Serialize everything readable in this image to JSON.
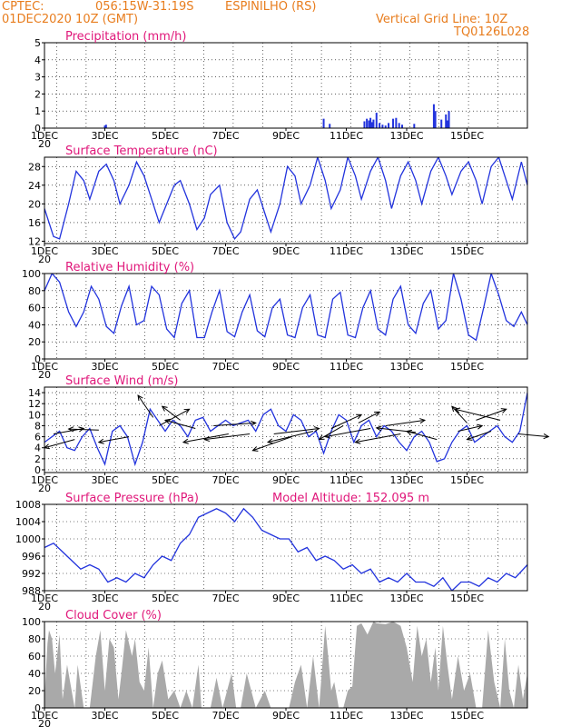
{
  "header": {
    "source": "CPTEC:",
    "coords": "056:15W-31:19S",
    "station": "ESPINILHO (RS)",
    "date": "01DEC2020 10Z (GMT)",
    "grid_note": "Vertical Grid Line: 10Z",
    "code": "TQ0126L028"
  },
  "x_labels": [
    "1DEC",
    "3DEC",
    "5DEC",
    "7DEC",
    "9DEC",
    "11DEC",
    "13DEC",
    "15DEC"
  ],
  "x_year_fragment": "20",
  "colors": {
    "line": "#2233dd",
    "cloud": "#a9a9a9",
    "title": "#e0177a",
    "header": "#e87d1e"
  },
  "chart_data": [
    {
      "type": "bar",
      "title": "Precipitation (mm/h)",
      "ylim": [
        0,
        5
      ],
      "yticks": [
        0,
        1,
        2,
        3,
        4,
        5
      ],
      "x_unit": "days since 1DEC 00Z",
      "x": [
        2.0,
        2.04,
        9.25,
        9.45,
        10.6,
        10.68,
        10.75,
        10.8,
        10.85,
        10.9,
        11.0,
        11.1,
        11.2,
        11.3,
        11.4,
        11.55,
        11.65,
        11.75,
        11.85,
        12.25,
        12.9,
        12.95,
        13.15,
        13.3,
        13.35,
        13.4
      ],
      "values": [
        0.15,
        0.2,
        0.55,
        0.25,
        0.4,
        0.55,
        0.45,
        0.6,
        0.35,
        0.5,
        0.9,
        0.3,
        0.2,
        0.15,
        0.3,
        0.55,
        0.6,
        0.3,
        0.2,
        0.25,
        1.4,
        1.0,
        0.5,
        0.8,
        0.45,
        1.0
      ]
    },
    {
      "type": "line",
      "title": "Surface Temperature (nC)",
      "ylim": [
        11.5,
        30
      ],
      "yticks": [
        12,
        16,
        20,
        24,
        28
      ],
      "x_unit": "days since 1DEC 00Z",
      "x": [
        0.0,
        0.3,
        0.5,
        0.8,
        1.05,
        1.3,
        1.5,
        1.8,
        2.05,
        2.3,
        2.5,
        2.8,
        3.05,
        3.3,
        3.5,
        3.8,
        4.05,
        4.3,
        4.5,
        4.8,
        5.05,
        5.3,
        5.5,
        5.8,
        6.05,
        6.3,
        6.5,
        6.8,
        7.05,
        7.3,
        7.5,
        7.8,
        8.05,
        8.3,
        8.5,
        8.8,
        9.05,
        9.3,
        9.5,
        9.8,
        10.05,
        10.3,
        10.5,
        10.8,
        11.05,
        11.3,
        11.5,
        11.8,
        12.05,
        12.3,
        12.5,
        12.8,
        13.05,
        13.3,
        13.5,
        13.8,
        14.05,
        14.3,
        14.5,
        14.8,
        15.05,
        15.3,
        15.5,
        15.8,
        16.0
      ],
      "values": [
        19,
        13,
        12.5,
        20,
        27,
        25,
        21,
        27,
        28.5,
        25,
        20,
        24,
        29,
        26,
        22,
        16,
        20,
        24,
        25,
        20,
        14.5,
        17,
        22,
        24,
        16,
        12.5,
        14,
        21,
        23,
        18,
        14,
        20,
        28,
        26,
        20,
        24,
        30,
        25,
        19,
        23,
        30,
        26,
        21,
        27,
        30,
        25,
        19,
        26,
        29,
        25,
        20,
        27,
        30,
        26,
        22,
        27,
        29,
        25,
        20,
        28,
        30,
        25,
        21,
        29,
        24
      ]
    },
    {
      "type": "line",
      "title": "Relative Humidity (%)",
      "ylim": [
        0,
        100
      ],
      "yticks": [
        0,
        20,
        40,
        60,
        80,
        100
      ],
      "x_unit": "days since 1DEC 00Z",
      "x": [
        0.0,
        0.25,
        0.5,
        0.8,
        1.05,
        1.3,
        1.55,
        1.8,
        2.05,
        2.3,
        2.55,
        2.8,
        3.05,
        3.3,
        3.55,
        3.8,
        4.05,
        4.3,
        4.55,
        4.8,
        5.05,
        5.3,
        5.55,
        5.8,
        6.05,
        6.3,
        6.55,
        6.8,
        7.05,
        7.3,
        7.55,
        7.8,
        8.05,
        8.3,
        8.55,
        8.8,
        9.05,
        9.3,
        9.55,
        9.8,
        10.05,
        10.3,
        10.55,
        10.8,
        11.05,
        11.3,
        11.55,
        11.8,
        12.05,
        12.3,
        12.55,
        12.8,
        13.05,
        13.3,
        13.55,
        13.8,
        14.05,
        14.3,
        14.55,
        14.8,
        15.05,
        15.3,
        15.55,
        15.8,
        16.0
      ],
      "values": [
        80,
        100,
        90,
        55,
        38,
        55,
        85,
        70,
        38,
        30,
        62,
        85,
        40,
        45,
        85,
        75,
        35,
        25,
        65,
        80,
        25,
        25,
        55,
        80,
        32,
        26,
        55,
        75,
        33,
        26,
        60,
        70,
        28,
        25,
        60,
        75,
        28,
        25,
        70,
        78,
        28,
        25,
        60,
        80,
        35,
        28,
        70,
        85,
        40,
        30,
        65,
        80,
        35,
        45,
        100,
        70,
        28,
        22,
        60,
        100,
        75,
        45,
        38,
        55,
        40
      ]
    },
    {
      "type": "line",
      "title": "Surface Wind (m/s)",
      "ylim": [
        -0.5,
        15
      ],
      "yticks": [
        0,
        2,
        4,
        6,
        8,
        10,
        12,
        14
      ],
      "x_unit": "days since 1DEC 00Z",
      "x": [
        0.0,
        0.25,
        0.5,
        0.75,
        1.0,
        1.25,
        1.5,
        1.75,
        2.0,
        2.25,
        2.5,
        2.75,
        3.0,
        3.25,
        3.5,
        3.75,
        4.0,
        4.25,
        4.5,
        4.75,
        5.0,
        5.25,
        5.5,
        5.75,
        6.0,
        6.25,
        6.5,
        6.75,
        7.0,
        7.25,
        7.5,
        7.75,
        8.0,
        8.25,
        8.5,
        8.75,
        9.0,
        9.25,
        9.5,
        9.75,
        10.0,
        10.25,
        10.5,
        10.75,
        11.0,
        11.25,
        11.5,
        11.75,
        12.0,
        12.25,
        12.5,
        12.75,
        13.0,
        13.25,
        13.5,
        13.75,
        14.0,
        14.25,
        14.5,
        14.75,
        15.0,
        15.25,
        15.5,
        15.75,
        16.0
      ],
      "values": [
        5,
        6,
        7,
        4,
        3.5,
        6,
        7.5,
        4,
        1,
        7,
        8,
        6,
        1,
        5,
        11,
        9,
        7,
        9,
        8,
        6,
        9,
        9.5,
        7,
        8,
        9,
        8,
        8.5,
        9,
        7,
        10,
        11,
        8,
        7,
        10,
        9,
        6,
        7,
        3,
        7,
        10,
        9,
        5,
        8,
        9,
        6,
        8,
        7,
        5,
        3.5,
        6,
        7,
        5,
        1.5,
        2,
        5,
        7,
        8,
        5,
        6,
        7,
        8,
        6,
        5,
        7,
        14
      ],
      "vectors": [
        {
          "x": 0.3,
          "y": 6.5,
          "dx": 1.0,
          "dy": 1.0
        },
        {
          "x": 1.0,
          "y": 5.5,
          "dx": -1.0,
          "dy": -1.5
        },
        {
          "x": 1.8,
          "y": 7.2,
          "dx": -1.0,
          "dy": 0.2
        },
        {
          "x": 2.8,
          "y": 6.0,
          "dx": -1.0,
          "dy": -1.0
        },
        {
          "x": 3.6,
          "y": 9.5,
          "dx": -0.5,
          "dy": 4.0
        },
        {
          "x": 3.8,
          "y": 8.0,
          "dx": 1.0,
          "dy": 3.0
        },
        {
          "x": 4.5,
          "y": 9.0,
          "dx": -0.6,
          "dy": 2.5
        },
        {
          "x": 5.0,
          "y": 7.5,
          "dx": -1.0,
          "dy": 1.5
        },
        {
          "x": 5.6,
          "y": 8.0,
          "dx": 1.4,
          "dy": 0.5
        },
        {
          "x": 6.1,
          "y": 6.5,
          "dx": -1.5,
          "dy": -1.5
        },
        {
          "x": 6.8,
          "y": 6.5,
          "dx": -1.5,
          "dy": -1.0
        },
        {
          "x": 7.6,
          "y": 6.5,
          "dx": 1.5,
          "dy": 1.0
        },
        {
          "x": 8.2,
          "y": 6.0,
          "dx": -1.3,
          "dy": -2.5
        },
        {
          "x": 8.9,
          "y": 7.0,
          "dx": -1.5,
          "dy": -2.0
        },
        {
          "x": 9.5,
          "y": 7.5,
          "dx": 1.0,
          "dy": 2.5
        },
        {
          "x": 9.9,
          "y": 8.0,
          "dx": -0.8,
          "dy": -2.5
        },
        {
          "x": 10.4,
          "y": 8.5,
          "dx": 0.7,
          "dy": 2.0
        },
        {
          "x": 10.8,
          "y": 7.5,
          "dx": -1.5,
          "dy": -1.5
        },
        {
          "x": 11.3,
          "y": 8.0,
          "dx": 1.3,
          "dy": 1.0
        },
        {
          "x": 11.8,
          "y": 6.5,
          "dx": -1.5,
          "dy": -1.5
        },
        {
          "x": 12.3,
          "y": 6.8,
          "dx": -1.3,
          "dy": 0.8
        },
        {
          "x": 13.0,
          "y": 5.5,
          "dx": -1.0,
          "dy": 1.5
        },
        {
          "x": 13.7,
          "y": 7.0,
          "dx": 0.8,
          "dy": 1.0
        },
        {
          "x": 14.0,
          "y": 8.5,
          "dx": -0.5,
          "dy": 3.0
        },
        {
          "x": 14.3,
          "y": 9.0,
          "dx": 1.0,
          "dy": 2.0
        },
        {
          "x": 14.8,
          "y": 7.0,
          "dx": -0.8,
          "dy": -1.5
        },
        {
          "x": 15.1,
          "y": 9.0,
          "dx": -1.5,
          "dy": 2.0
        },
        {
          "x": 15.7,
          "y": 6.5,
          "dx": 1.0,
          "dy": -0.5
        }
      ]
    },
    {
      "type": "line",
      "title": "Surface Pressure (hPa)",
      "subtitle": "Model Altitude: 152.095 m",
      "ylim": [
        988,
        1008
      ],
      "yticks": [
        988,
        992,
        996,
        1000,
        1004,
        1008
      ],
      "x_unit": "days since 1DEC 00Z",
      "x": [
        0.0,
        0.3,
        0.6,
        0.9,
        1.2,
        1.5,
        1.8,
        2.1,
        2.4,
        2.7,
        3.0,
        3.3,
        3.6,
        3.9,
        4.2,
        4.5,
        4.8,
        5.1,
        5.4,
        5.7,
        6.0,
        6.3,
        6.6,
        6.9,
        7.2,
        7.5,
        7.8,
        8.1,
        8.4,
        8.7,
        9.0,
        9.3,
        9.6,
        9.9,
        10.2,
        10.5,
        10.8,
        11.1,
        11.4,
        11.7,
        12.0,
        12.3,
        12.6,
        12.9,
        13.2,
        13.5,
        13.8,
        14.1,
        14.4,
        14.7,
        15.0,
        15.3,
        15.6,
        16.0
      ],
      "values": [
        998,
        999,
        997,
        995,
        993,
        994,
        993,
        990,
        991,
        990,
        992,
        991,
        994,
        996,
        995,
        999,
        1001,
        1005,
        1006,
        1007,
        1006,
        1004,
        1007,
        1005,
        1002,
        1001,
        1000,
        1000,
        997,
        998,
        995,
        996,
        995,
        993,
        994,
        992,
        993,
        990,
        991,
        990,
        992,
        990,
        990,
        989,
        991,
        988,
        990,
        990,
        989,
        991,
        990,
        992,
        991,
        994
      ]
    },
    {
      "type": "area",
      "title": "Cloud Cover (%)",
      "ylim": [
        0,
        100
      ],
      "yticks": [
        0,
        20,
        40,
        60,
        80,
        100
      ],
      "x_unit": "days since 1DEC 00Z",
      "x": [
        0.0,
        0.1,
        0.15,
        0.25,
        0.35,
        0.5,
        0.6,
        0.75,
        0.85,
        1.0,
        1.1,
        1.3,
        1.5,
        1.7,
        1.85,
        2.0,
        2.15,
        2.3,
        2.45,
        2.55,
        2.7,
        2.9,
        3.0,
        3.15,
        3.3,
        3.45,
        3.6,
        3.75,
        3.9,
        4.1,
        4.3,
        4.5,
        4.7,
        4.9,
        5.1,
        5.2,
        5.35,
        5.5,
        5.7,
        5.9,
        6.2,
        6.35,
        6.5,
        6.7,
        7.0,
        7.3,
        7.5,
        7.7,
        7.9,
        8.1,
        8.3,
        8.5,
        8.7,
        8.9,
        9.1,
        9.3,
        9.4,
        9.5,
        9.6,
        9.75,
        9.9,
        10.05,
        10.2,
        10.35,
        10.5,
        10.7,
        10.9,
        11.0,
        11.3,
        11.55,
        11.8,
        12.0,
        12.2,
        12.35,
        12.5,
        12.65,
        12.8,
        12.95,
        13.05,
        13.2,
        13.35,
        13.5,
        13.7,
        13.9,
        14.1,
        14.3,
        14.5,
        14.7,
        14.9,
        15.1,
        15.25,
        15.4,
        15.55,
        15.7,
        15.85,
        16.0
      ],
      "values": [
        10,
        75,
        90,
        80,
        40,
        85,
        10,
        50,
        30,
        0,
        50,
        0,
        0,
        60,
        90,
        20,
        80,
        70,
        10,
        40,
        90,
        60,
        80,
        30,
        20,
        70,
        0,
        40,
        55,
        10,
        20,
        0,
        20,
        0,
        50,
        0,
        0,
        0,
        35,
        0,
        40,
        0,
        0,
        40,
        0,
        20,
        0,
        0,
        0,
        0,
        30,
        50,
        0,
        60,
        0,
        95,
        60,
        20,
        30,
        0,
        0,
        20,
        25,
        95,
        98,
        85,
        100,
        98,
        97,
        100,
        95,
        70,
        30,
        95,
        60,
        80,
        30,
        70,
        20,
        95,
        50,
        10,
        60,
        20,
        40,
        0,
        0,
        90,
        30,
        0,
        80,
        20,
        0,
        50,
        10,
        40
      ]
    }
  ]
}
